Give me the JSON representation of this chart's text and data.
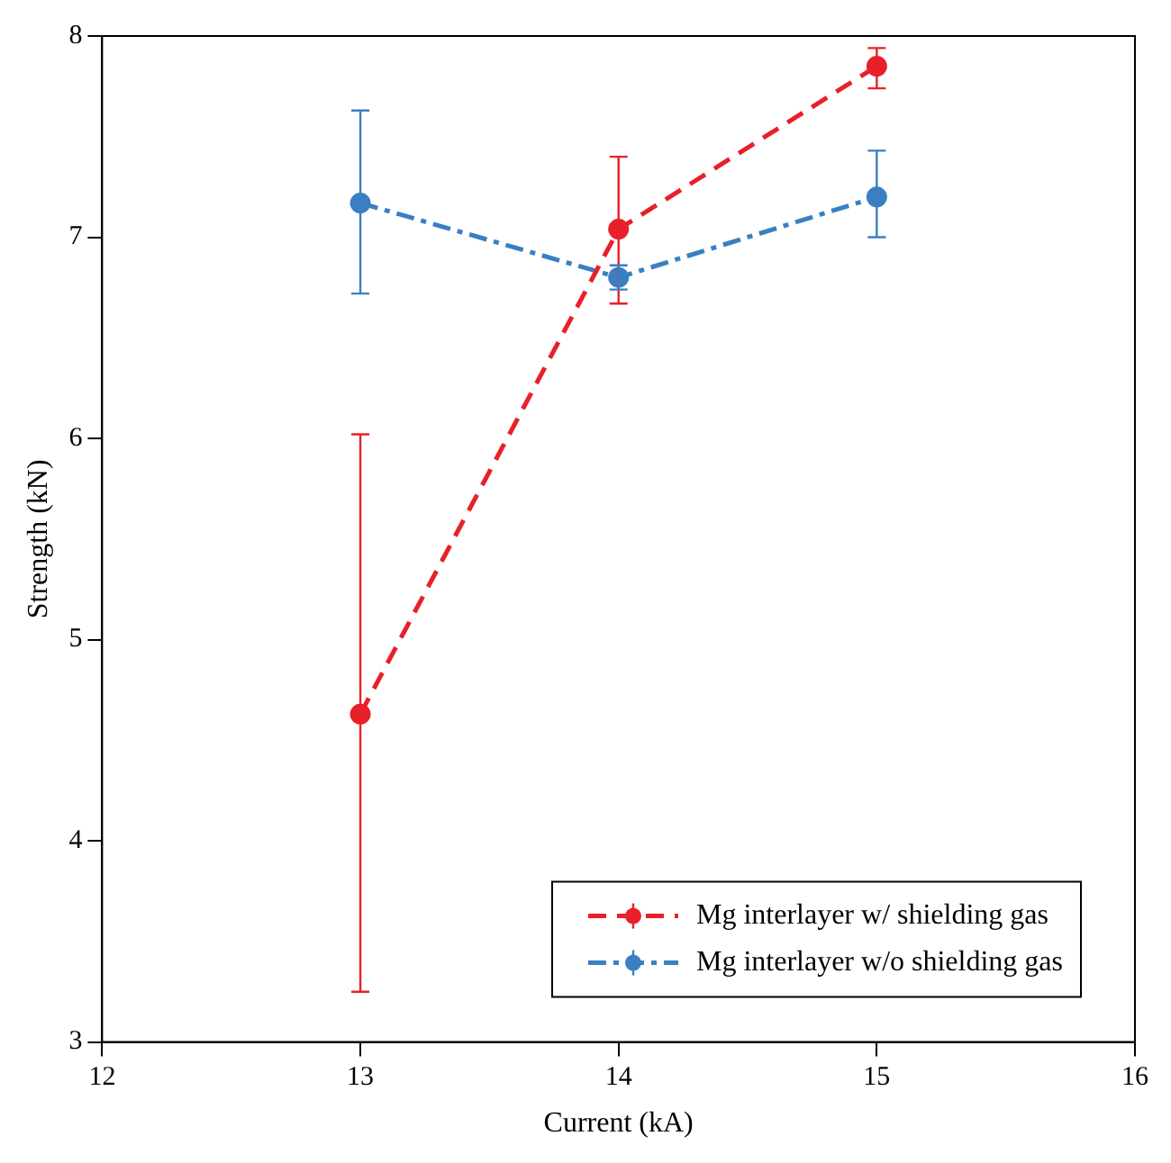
{
  "chart_data": {
    "type": "line",
    "xlabel": "Current (kA)",
    "ylabel": "Strength (kN)",
    "x": [
      13,
      14,
      15
    ],
    "series": [
      {
        "name": "Mg interlayer w/ shielding gas",
        "color": "#e8202a",
        "values": [
          4.63,
          7.04,
          7.85
        ],
        "errors": [
          [
            3.25,
            6.02
          ],
          [
            6.67,
            7.4
          ],
          [
            7.74,
            7.94
          ]
        ],
        "line_style": "dashed"
      },
      {
        "name": "Mg interlayer w/o shielding gas",
        "color": "#3a7fc1",
        "values": [
          7.17,
          6.8,
          7.2
        ],
        "errors": [
          [
            6.72,
            7.63
          ],
          [
            6.74,
            6.86
          ],
          [
            7.0,
            7.43
          ]
        ],
        "line_style": "dashdot"
      }
    ],
    "marker": "circle",
    "xlim": [
      12,
      16
    ],
    "xticks": [
      12,
      13,
      14,
      15,
      16
    ],
    "ylim": [
      3,
      8
    ],
    "yticks": [
      3,
      4,
      5,
      6,
      7,
      8
    ],
    "grid": false,
    "legend": "bottom right"
  }
}
